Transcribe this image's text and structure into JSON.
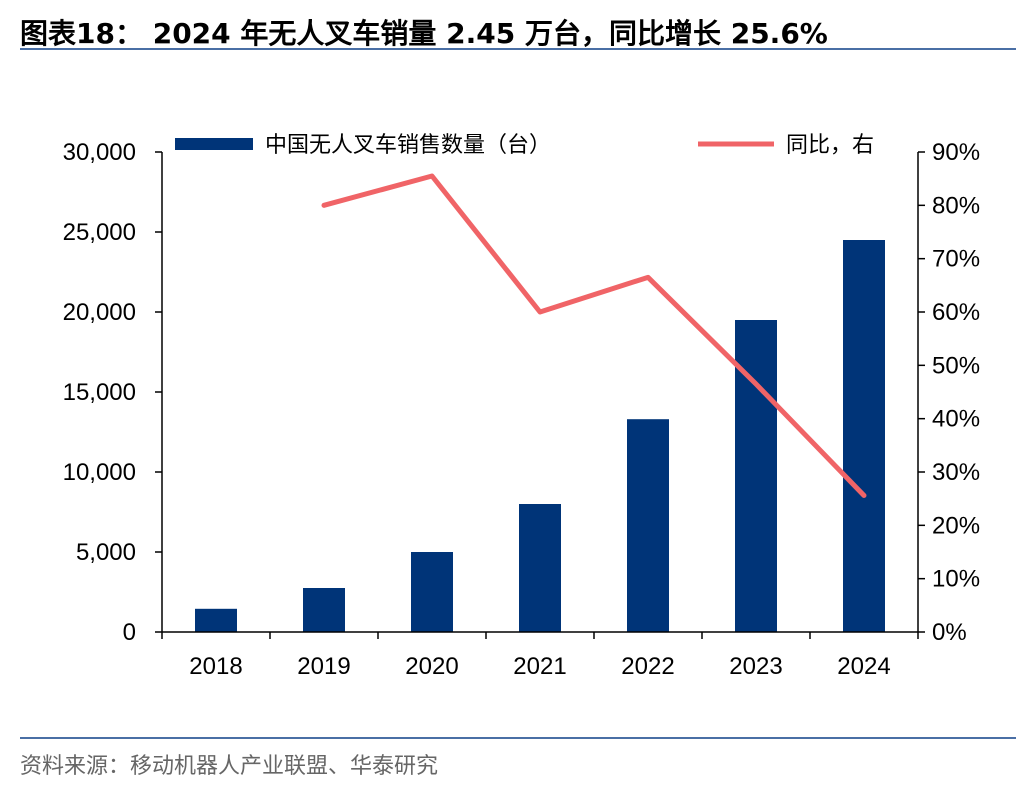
{
  "header": {
    "title": "图表18： 2024 年无人叉车销量 2.45 万台，同比增长 25.6%"
  },
  "footer": {
    "source": "资料来源：移动机器人产业联盟、华泰研究"
  },
  "colors": {
    "bar": "#003478",
    "line": "#f06467",
    "rule": "#4a6fa5"
  },
  "chart_data": {
    "type": "bar",
    "categories": [
      "2018",
      "2019",
      "2020",
      "2021",
      "2022",
      "2023",
      "2024"
    ],
    "series": [
      {
        "name": "中国无人叉车销售数量（台）",
        "type": "bar",
        "axis": "left",
        "values": [
          1450,
          2750,
          5000,
          8000,
          13300,
          19500,
          24500
        ]
      },
      {
        "name": "同比，右",
        "type": "line",
        "axis": "right",
        "values": [
          null,
          0.8,
          0.855,
          0.6,
          0.665,
          0.465,
          0.256
        ]
      }
    ],
    "y_left": {
      "min": 0,
      "max": 30000,
      "ticks": [
        "0",
        "5,000",
        "10,000",
        "15,000",
        "20,000",
        "25,000",
        "30,000"
      ]
    },
    "y_right": {
      "min": 0,
      "max": 0.9,
      "ticks": [
        "0%",
        "10%",
        "20%",
        "30%",
        "40%",
        "50%",
        "60%",
        "70%",
        "80%",
        "90%"
      ]
    },
    "legend_position": "top",
    "grid": false
  }
}
